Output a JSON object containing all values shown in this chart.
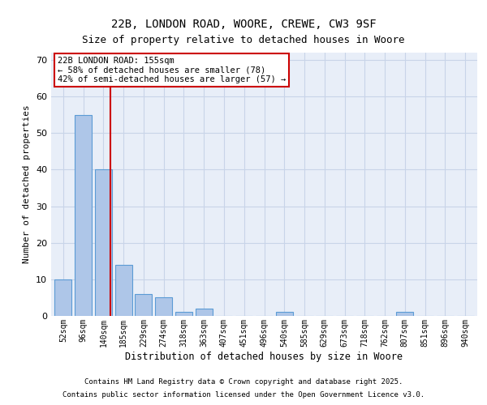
{
  "title1": "22B, LONDON ROAD, WOORE, CREWE, CW3 9SF",
  "title2": "Size of property relative to detached houses in Woore",
  "xlabel": "Distribution of detached houses by size in Woore",
  "ylabel": "Number of detached properties",
  "categories": [
    "52sqm",
    "96sqm",
    "140sqm",
    "185sqm",
    "229sqm",
    "274sqm",
    "318sqm",
    "363sqm",
    "407sqm",
    "451sqm",
    "496sqm",
    "540sqm",
    "585sqm",
    "629sqm",
    "673sqm",
    "718sqm",
    "762sqm",
    "807sqm",
    "851sqm",
    "896sqm",
    "940sqm"
  ],
  "bar_values": [
    10,
    55,
    40,
    14,
    6,
    5,
    1,
    2,
    0,
    0,
    0,
    1,
    0,
    0,
    0,
    0,
    0,
    1,
    0,
    0,
    0
  ],
  "bar_color": "#aec6e8",
  "bar_edge_color": "#5b9bd5",
  "ylim": [
    0,
    72
  ],
  "yticks": [
    0,
    10,
    20,
    30,
    40,
    50,
    60,
    70
  ],
  "property_label": "22B LONDON ROAD: 155sqm",
  "annotation_line1": "← 58% of detached houses are smaller (78)",
  "annotation_line2": "42% of semi-detached houses are larger (57) →",
  "red_line_color": "#cc0000",
  "annotation_box_color": "#ffffff",
  "annotation_box_edge": "#cc0000",
  "grid_color": "#c8d4e8",
  "bg_color": "#e8eef8",
  "footer1": "Contains HM Land Registry data © Crown copyright and database right 2025.",
  "footer2": "Contains public sector information licensed under the Open Government Licence v3.0.",
  "title_fontsize": 10,
  "subtitle_fontsize": 9
}
